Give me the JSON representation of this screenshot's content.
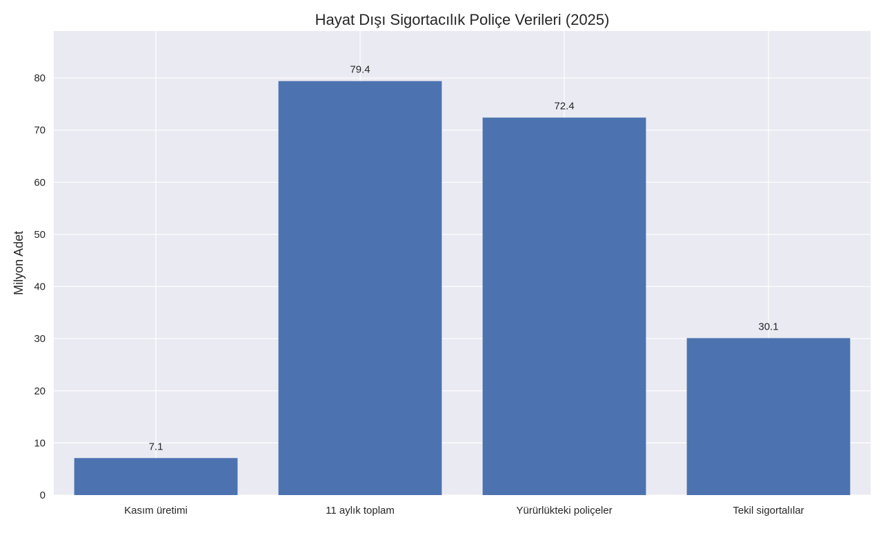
{
  "chart_data": {
    "type": "bar",
    "title": "Hayat Dışı Sigortacılık Poliçe Verileri (2025)",
    "xlabel": "",
    "ylabel": "Milyon Adet",
    "categories": [
      "Kasım üretimi",
      "11 aylık toplam",
      "Yürürlükteki poliçeler",
      "Tekil sigortalılar"
    ],
    "values": [
      7.1,
      79.4,
      72.4,
      30.1
    ],
    "data_labels": [
      "7.1",
      "79.4",
      "72.4",
      "30.1"
    ],
    "ylim": [
      0,
      89
    ],
    "yticks": [
      0,
      10,
      20,
      30,
      40,
      50,
      60,
      70,
      80
    ],
    "grid": true,
    "legend": "none",
    "colors": {
      "bar": "#4c72b0",
      "plot_background": "#eaeaf2",
      "grid": "#ffffff",
      "text": "#262626"
    }
  }
}
